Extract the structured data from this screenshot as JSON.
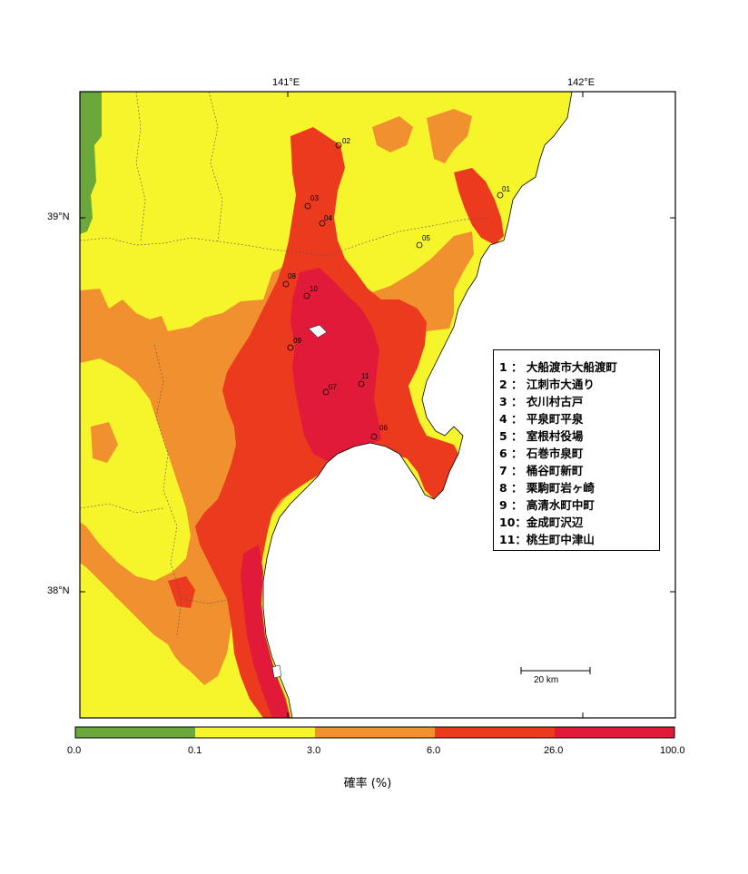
{
  "map": {
    "lon_ticks": [
      "141°E",
      "142°E"
    ],
    "lat_ticks": [
      "39°N",
      "38°N"
    ],
    "scale_label": "20 km"
  },
  "legend": {
    "items": [
      {
        "num": "1",
        "name": "大船渡市大船渡町"
      },
      {
        "num": "2",
        "name": "江刺市大通り"
      },
      {
        "num": "3",
        "name": "衣川村古戸"
      },
      {
        "num": "4",
        "name": "平泉町平泉"
      },
      {
        "num": "5",
        "name": "室根村役場"
      },
      {
        "num": "6",
        "name": "石巻市泉町"
      },
      {
        "num": "7",
        "name": "桶谷町新町"
      },
      {
        "num": "8",
        "name": "栗駒町岩ヶ崎"
      },
      {
        "num": "9",
        "name": "高清水町中町"
      },
      {
        "num": "10",
        "name": "金成町沢辺"
      },
      {
        "num": "11",
        "name": "桃生町中津山"
      }
    ]
  },
  "sites": [
    {
      "label": "01"
    },
    {
      "label": "02"
    },
    {
      "label": "03"
    },
    {
      "label": "04"
    },
    {
      "label": "05"
    },
    {
      "label": "06"
    },
    {
      "label": "07"
    },
    {
      "label": "08"
    },
    {
      "label": "09"
    },
    {
      "label": "10"
    },
    {
      "label": "11"
    }
  ],
  "colorbar": {
    "title": "確率 (%)",
    "ticks": [
      "0.0",
      "0.1",
      "3.0",
      "6.0",
      "26.0",
      "100.0"
    ],
    "colors": [
      "#6aa83c",
      "#f6f52b",
      "#f0902e",
      "#ec3a1e",
      "#e11a3a"
    ]
  }
}
